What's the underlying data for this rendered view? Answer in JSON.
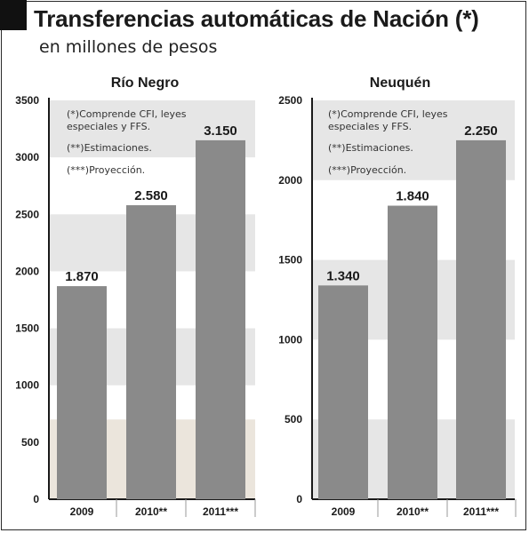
{
  "header": {
    "title": "Transferencias automáticas de Nación (*)",
    "subtitle": "en millones de pesos"
  },
  "colors": {
    "bar": "#8a8a8a",
    "band_gray": "#e6e6e6",
    "band_beige": "#ebe5dc",
    "axis": "#1a1a1a",
    "text": "#1a1a1a"
  },
  "chart_data": [
    {
      "type": "bar",
      "title": "Río Negro",
      "categories": [
        "2009",
        "2010**",
        "2011***"
      ],
      "values": [
        1870,
        2580,
        3150
      ],
      "value_labels": [
        "1.870",
        "2.580",
        "3.150"
      ],
      "yticks": [
        "0",
        "500",
        "1000",
        "1500",
        "2000",
        "2500",
        "3000",
        "3500"
      ],
      "ylim": [
        0,
        3500
      ],
      "notes": [
        "(*)Comprende CFI, leyes",
        "especiales y FFS.",
        "(**)Estimaciones.",
        "(***)Proyección."
      ]
    },
    {
      "type": "bar",
      "title": "Neuquén",
      "categories": [
        "2009",
        "2010**",
        "2011***"
      ],
      "values": [
        1340,
        1840,
        2250
      ],
      "value_labels": [
        "1.340",
        "1.840",
        "2.250"
      ],
      "yticks": [
        "0",
        "500",
        "1000",
        "1500",
        "2000",
        "2500"
      ],
      "ylim": [
        0,
        2500
      ],
      "notes": [
        "(*)Comprende CFI, leyes",
        "especiales y FFS.",
        "(**)Estimaciones.",
        "(***)Proyección."
      ]
    }
  ]
}
